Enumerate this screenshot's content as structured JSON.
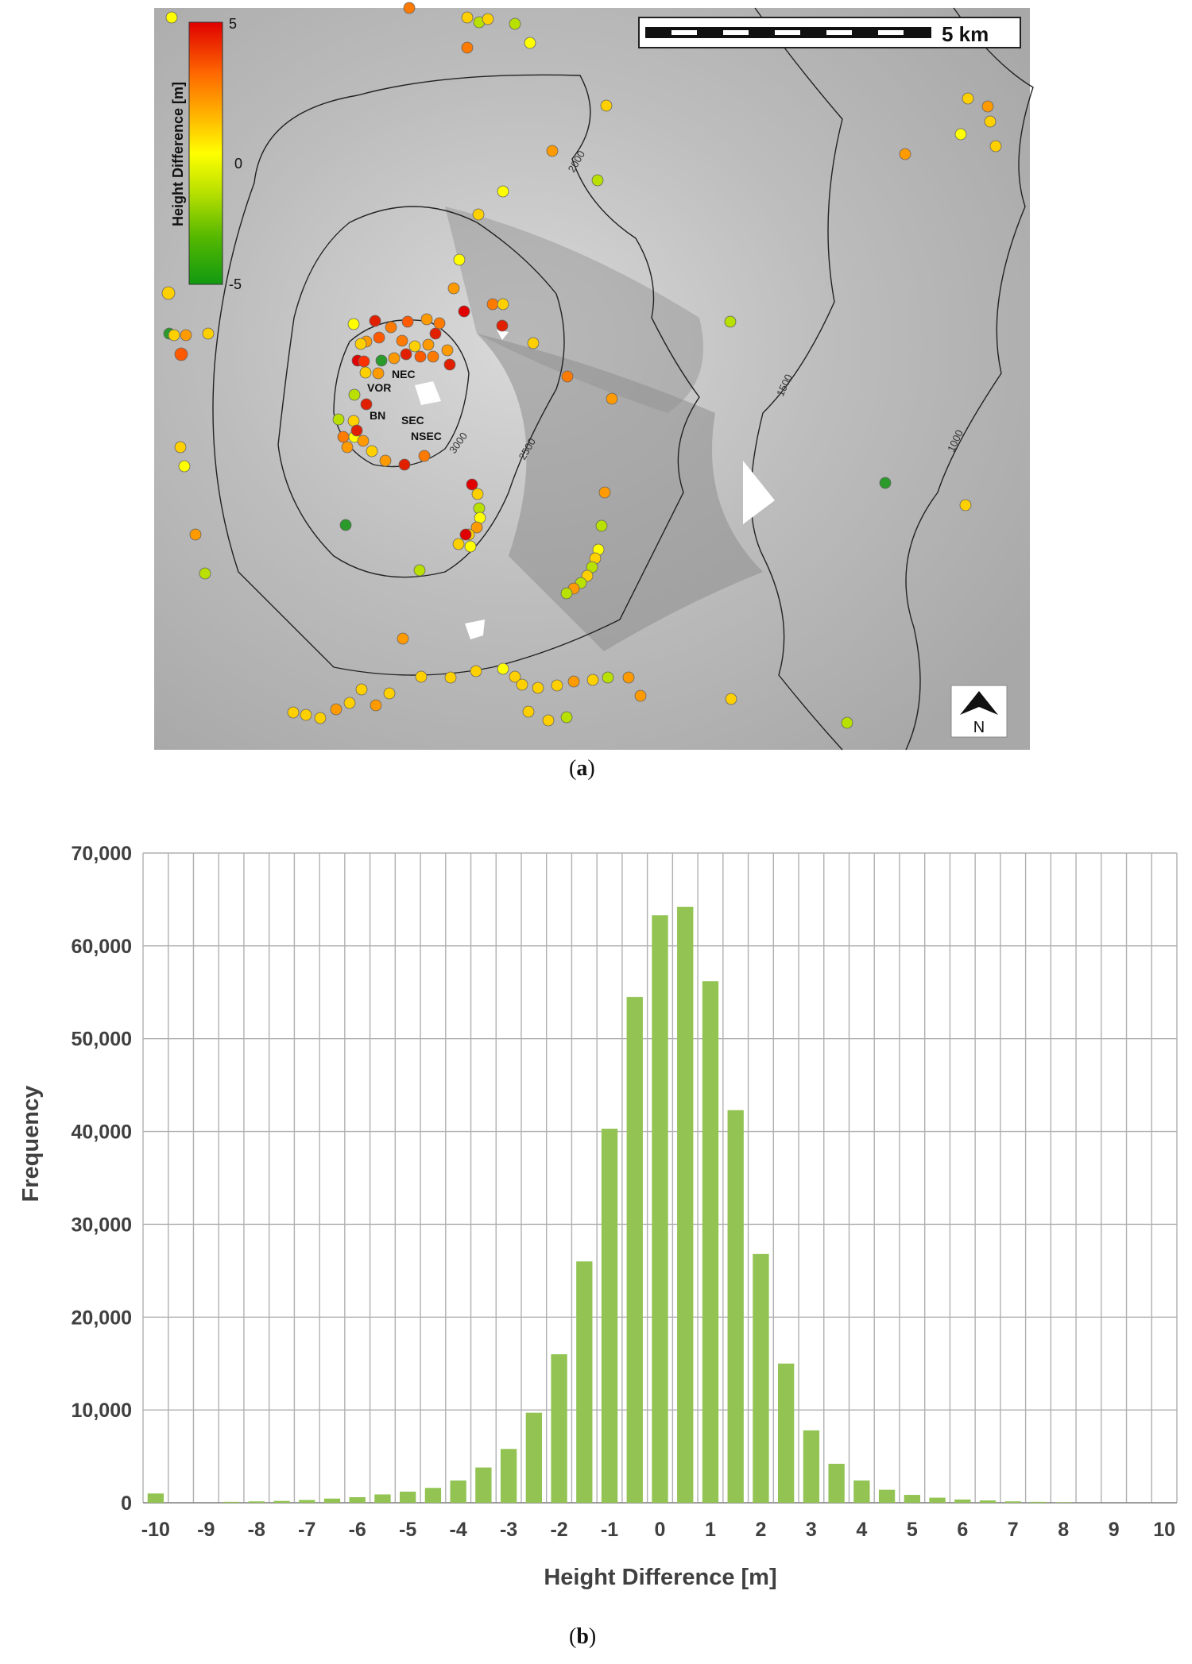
{
  "map": {
    "scale_label": "5 km",
    "colorbar": {
      "title": "Height Difference [m]",
      "max_label": "5",
      "mid_label": "0",
      "min_label": "-5",
      "colors": [
        "#e00000",
        "#ff7a00",
        "#ffd000",
        "#ffff00",
        "#b8e000",
        "#5cc000",
        "#119911"
      ]
    },
    "contour_labels": [
      "2000",
      "1500",
      "1000",
      "3000",
      "2500"
    ],
    "crater_labels": [
      "NEC",
      "VOR",
      "BN",
      "SEC",
      "NSEC"
    ],
    "north_label": "N",
    "caption": "a"
  },
  "chart_data": {
    "type": "bar",
    "title": "",
    "xlabel": "Height Difference [m]",
    "ylabel": "Frequency",
    "xlim": [
      -10,
      10
    ],
    "ylim": [
      0,
      70000
    ],
    "yticks": [
      "0",
      "10,000",
      "20,000",
      "30,000",
      "40,000",
      "50,000",
      "60,000",
      "70,000"
    ],
    "xticks": [
      "-10",
      "-9",
      "-8",
      "-7",
      "-6",
      "-5",
      "-4",
      "-3",
      "-2",
      "-1",
      "0",
      "1",
      "2",
      "3",
      "4",
      "5",
      "6",
      "7",
      "8",
      "9",
      "10"
    ],
    "bar_color": "#92c353",
    "grid": true,
    "x": [
      -10,
      -9.5,
      -9,
      -8.5,
      -8,
      -7.5,
      -7,
      -6.5,
      -6,
      -5.5,
      -5,
      -4.5,
      -4,
      -3.5,
      -3,
      -2.5,
      -2,
      -1.5,
      -1,
      -0.5,
      0,
      0.5,
      1,
      1.5,
      2,
      2.5,
      3,
      3.5,
      4,
      4.5,
      5,
      5.5,
      6,
      6.5,
      7,
      7.5,
      8,
      8.5,
      9,
      9.5,
      10
    ],
    "values": [
      1000,
      0,
      0,
      100,
      150,
      200,
      300,
      450,
      600,
      900,
      1200,
      1600,
      2400,
      3800,
      5800,
      9700,
      16000,
      26000,
      40300,
      54500,
      63300,
      64200,
      56200,
      42300,
      26800,
      15000,
      7800,
      4200,
      2400,
      1400,
      850,
      550,
      350,
      250,
      150,
      100,
      50,
      0,
      0,
      0,
      0
    ],
    "caption": "b"
  }
}
